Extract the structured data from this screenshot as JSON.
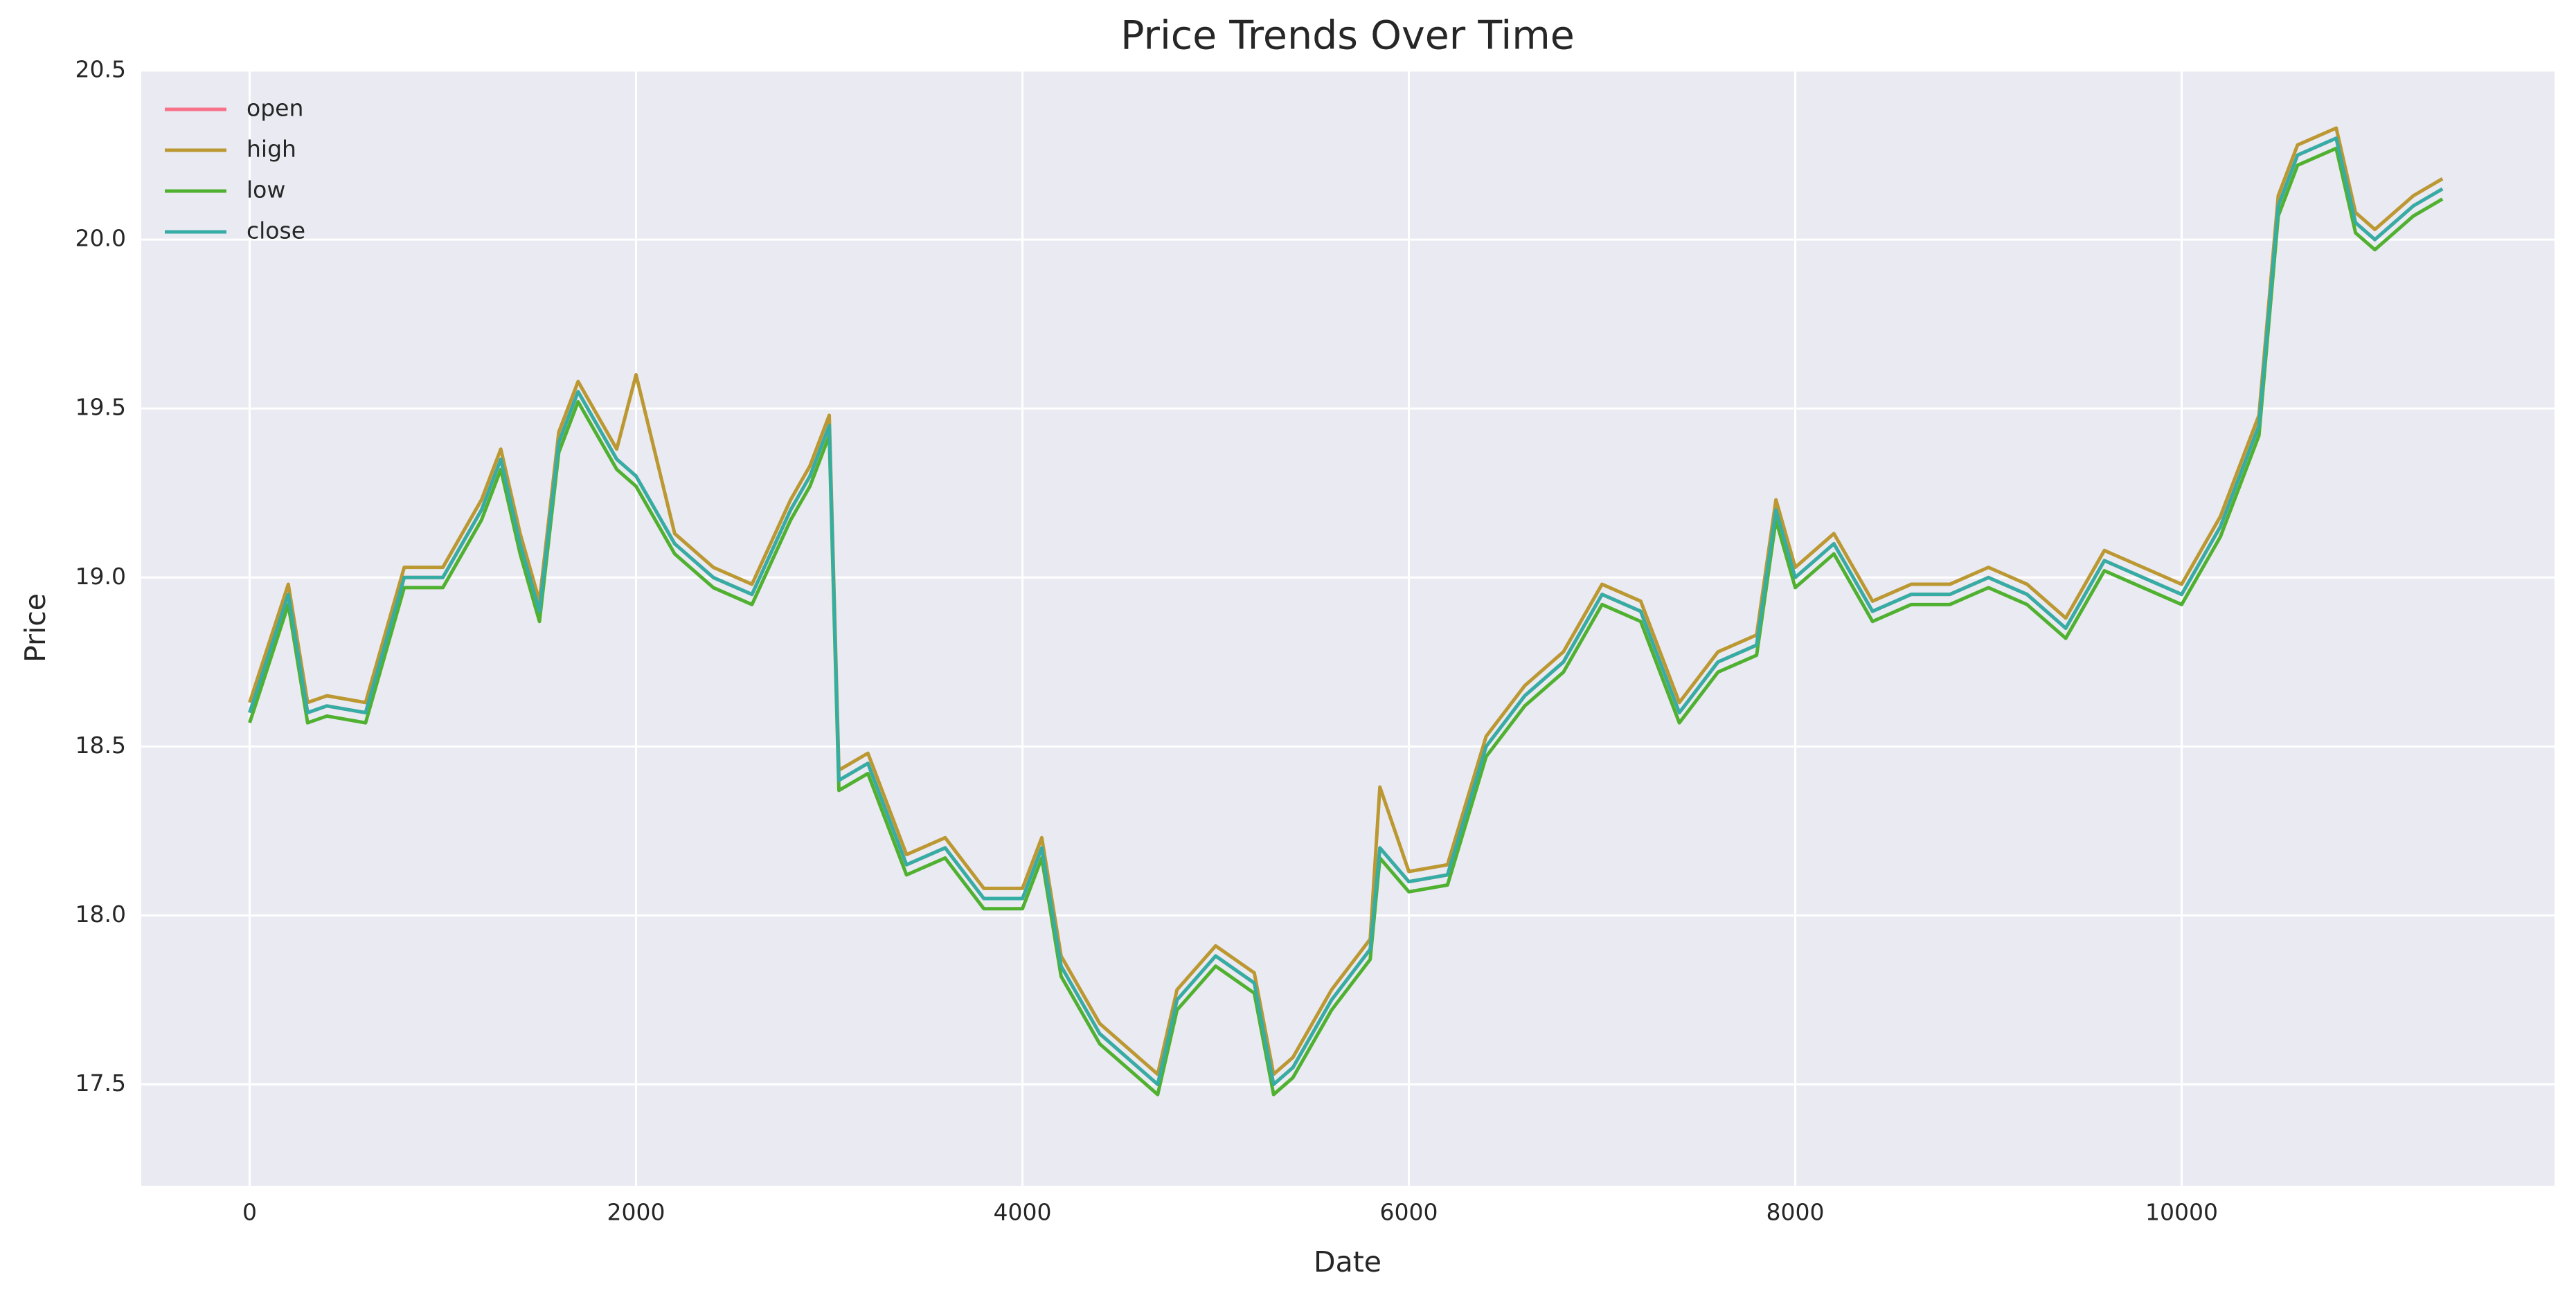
{
  "chart_data": {
    "type": "line",
    "title": "Price Trends Over Time",
    "xlabel": "Date",
    "ylabel": "Price",
    "x": [
      0,
      200,
      300,
      400,
      600,
      800,
      1000,
      1200,
      1300,
      1400,
      1500,
      1600,
      1700,
      1800,
      1900,
      2000,
      2200,
      2400,
      2600,
      2800,
      2900,
      3000,
      3050,
      3200,
      3400,
      3600,
      3800,
      4000,
      4100,
      4200,
      4400,
      4600,
      4700,
      4800,
      5000,
      5200,
      5300,
      5400,
      5600,
      5800,
      5850,
      6000,
      6200,
      6400,
      6600,
      6800,
      7000,
      7200,
      7400,
      7600,
      7800,
      7900,
      8000,
      8200,
      8400,
      8600,
      8800,
      9000,
      9200,
      9400,
      9600,
      9800,
      10000,
      10200,
      10400,
      10500,
      10600,
      10800,
      10900,
      11000,
      11200,
      11350
    ],
    "series": [
      {
        "name": "open",
        "color": "#f77189",
        "values": [
          18.6,
          18.95,
          18.6,
          18.62,
          18.6,
          19.0,
          19.0,
          19.2,
          19.35,
          19.1,
          18.9,
          19.4,
          19.55,
          19.45,
          19.35,
          19.3,
          19.1,
          19.0,
          18.95,
          19.2,
          19.3,
          19.45,
          18.4,
          18.45,
          18.15,
          18.2,
          18.05,
          18.05,
          18.2,
          17.85,
          17.65,
          17.55,
          17.5,
          17.75,
          17.88,
          17.8,
          17.5,
          17.55,
          17.75,
          17.9,
          18.2,
          18.1,
          18.12,
          18.5,
          18.65,
          18.75,
          18.95,
          18.9,
          18.6,
          18.75,
          18.8,
          19.2,
          19.0,
          19.1,
          18.9,
          18.95,
          18.95,
          19.0,
          18.95,
          18.85,
          19.05,
          19.0,
          18.95,
          19.15,
          19.45,
          20.1,
          20.25,
          20.3,
          20.05,
          20.0,
          20.1,
          20.15
        ]
      },
      {
        "name": "high",
        "color": "#bb9832",
        "values": [
          18.63,
          18.98,
          18.63,
          18.65,
          18.63,
          19.03,
          19.03,
          19.23,
          19.38,
          19.13,
          18.93,
          19.43,
          19.58,
          19.48,
          19.38,
          19.6,
          19.13,
          19.03,
          18.98,
          19.23,
          19.33,
          19.48,
          18.43,
          18.48,
          18.18,
          18.23,
          18.08,
          18.08,
          18.23,
          17.88,
          17.68,
          17.58,
          17.53,
          17.78,
          17.91,
          17.83,
          17.53,
          17.58,
          17.78,
          17.93,
          18.38,
          18.13,
          18.15,
          18.53,
          18.68,
          18.78,
          18.98,
          18.93,
          18.63,
          18.78,
          18.83,
          19.23,
          19.03,
          19.13,
          18.93,
          18.98,
          18.98,
          19.03,
          18.98,
          18.88,
          19.08,
          19.03,
          18.98,
          19.18,
          19.48,
          20.13,
          20.28,
          20.33,
          20.08,
          20.03,
          20.13,
          20.18
        ]
      },
      {
        "name": "low",
        "color": "#50b131",
        "values": [
          18.57,
          18.92,
          18.57,
          18.59,
          18.57,
          18.97,
          18.97,
          19.17,
          19.32,
          19.07,
          18.87,
          19.37,
          19.52,
          19.42,
          19.32,
          19.27,
          19.07,
          18.97,
          18.92,
          19.17,
          19.27,
          19.42,
          18.37,
          18.42,
          18.12,
          18.17,
          18.02,
          18.02,
          18.17,
          17.82,
          17.62,
          17.52,
          17.47,
          17.72,
          17.85,
          17.77,
          17.47,
          17.52,
          17.72,
          17.87,
          18.17,
          18.07,
          18.09,
          18.47,
          18.62,
          18.72,
          18.92,
          18.87,
          18.57,
          18.72,
          18.77,
          19.17,
          18.97,
          19.07,
          18.87,
          18.92,
          18.92,
          18.97,
          18.92,
          18.82,
          19.02,
          18.97,
          18.92,
          19.12,
          19.42,
          20.07,
          20.22,
          20.27,
          20.02,
          19.97,
          20.07,
          20.12
        ]
      },
      {
        "name": "close",
        "color": "#36ada4",
        "values": [
          18.6,
          18.95,
          18.6,
          18.62,
          18.6,
          19.0,
          19.0,
          19.2,
          19.35,
          19.1,
          18.9,
          19.4,
          19.55,
          19.45,
          19.35,
          19.3,
          19.1,
          19.0,
          18.95,
          19.2,
          19.3,
          19.45,
          18.4,
          18.45,
          18.15,
          18.2,
          18.05,
          18.05,
          18.2,
          17.85,
          17.65,
          17.55,
          17.5,
          17.75,
          17.88,
          17.8,
          17.5,
          17.55,
          17.75,
          17.9,
          18.2,
          18.1,
          18.12,
          18.5,
          18.65,
          18.75,
          18.95,
          18.9,
          18.6,
          18.75,
          18.8,
          19.2,
          19.0,
          19.1,
          18.9,
          18.95,
          18.95,
          19.0,
          18.95,
          18.85,
          19.05,
          19.0,
          18.95,
          19.15,
          19.45,
          20.1,
          20.25,
          20.3,
          20.05,
          20.0,
          20.1,
          20.15
        ]
      }
    ],
    "xlim": [
      -561,
      11930
    ],
    "ylim": [
      17.2,
      20.5
    ],
    "xticks": [
      0,
      2000,
      4000,
      6000,
      8000,
      10000
    ],
    "yticks": [
      17.5,
      {
        "value": 18,
        "label": "18.0"
      },
      18.5,
      {
        "value": 19,
        "label": "19.0"
      },
      19.5,
      {
        "value": 20,
        "label": "20.0"
      },
      20.5
    ],
    "grid": true,
    "legend": "upper left"
  }
}
